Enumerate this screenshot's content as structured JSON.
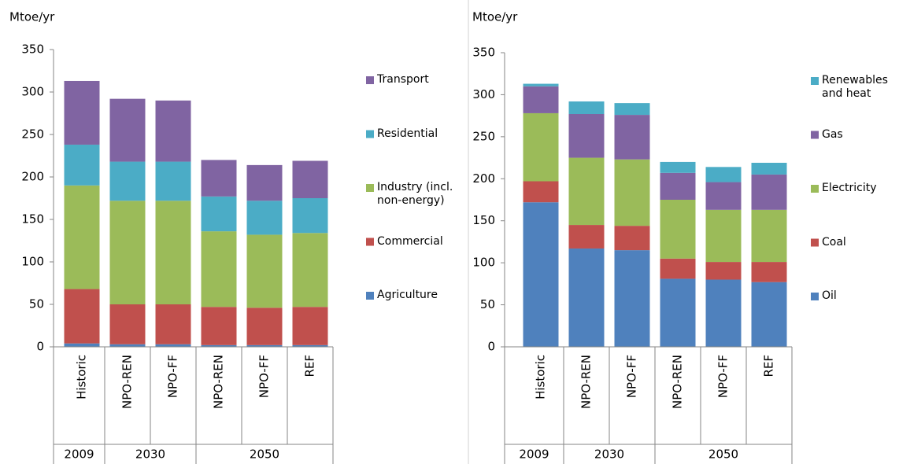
{
  "chart_data": [
    {
      "type": "stacked_bar",
      "y_label": "Mtoe/yr",
      "categories": [
        "Historic",
        "NPO-REN",
        "NPO-FF",
        "NPO-REN",
        "NPO-FF",
        "REF"
      ],
      "groups": [
        {
          "label": "2009",
          "count": 1
        },
        {
          "label": "2030",
          "count": 2
        },
        {
          "label": "2050",
          "count": 3
        }
      ],
      "ylim": [
        0,
        350
      ],
      "yticks": [
        0,
        50,
        100,
        150,
        200,
        250,
        300,
        350
      ],
      "series": [
        {
          "name": "Agriculture",
          "color": "#4f81bd",
          "values": [
            4,
            3,
            3,
            2,
            2,
            2
          ]
        },
        {
          "name": "Commercial",
          "color": "#c0504d",
          "values": [
            64,
            47,
            47,
            45,
            44,
            45
          ]
        },
        {
          "name": "Industry (incl. non-energy)",
          "color": "#9bbb59",
          "values": [
            122,
            122,
            122,
            89,
            86,
            87
          ]
        },
        {
          "name": "Residential",
          "color": "#4bacc6",
          "values": [
            48,
            46,
            46,
            41,
            40,
            41
          ]
        },
        {
          "name": "Transport",
          "color": "#8064a2",
          "values": [
            75,
            74,
            72,
            43,
            42,
            44
          ]
        }
      ]
    },
    {
      "type": "stacked_bar",
      "y_label": "Mtoe/yr",
      "categories": [
        "Historic",
        "NPO-REN",
        "NPO-FF",
        "NPO-REN",
        "NPO-FF",
        "REF"
      ],
      "groups": [
        {
          "label": "2009",
          "count": 1
        },
        {
          "label": "2030",
          "count": 2
        },
        {
          "label": "2050",
          "count": 3
        }
      ],
      "ylim": [
        0,
        350
      ],
      "yticks": [
        0,
        50,
        100,
        150,
        200,
        250,
        300,
        350
      ],
      "series": [
        {
          "name": "Oil",
          "color": "#4f81bd",
          "values": [
            172,
            117,
            115,
            81,
            80,
            77
          ]
        },
        {
          "name": "Coal",
          "color": "#c0504d",
          "values": [
            25,
            28,
            29,
            24,
            21,
            24
          ]
        },
        {
          "name": "Electricity",
          "color": "#9bbb59",
          "values": [
            81,
            80,
            79,
            70,
            62,
            62
          ]
        },
        {
          "name": "Gas",
          "color": "#8064a2",
          "values": [
            32,
            52,
            53,
            32,
            33,
            42
          ]
        },
        {
          "name": "Renewables and heat",
          "color": "#4bacc6",
          "values": [
            3,
            15,
            14,
            13,
            18,
            14
          ]
        }
      ]
    }
  ]
}
